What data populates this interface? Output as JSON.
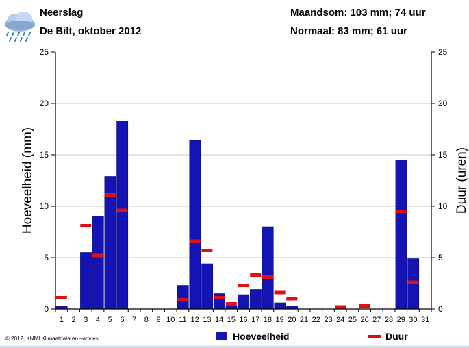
{
  "header": {
    "title_line1": "Neerslag",
    "title_line2": "De Bilt, oktober 2012",
    "summary_line1": "Maandsom: 103 mm; 74 uur",
    "summary_line2": "Normaal: 83 mm; 61 uur"
  },
  "icon": "rain-cloud-icon",
  "footer": {
    "credit": "© 2012, KNMI Klimaatdata en –advies"
  },
  "colors": {
    "bar": "#1414b4",
    "duration": "#dd1111",
    "grid": "#c8c8c8"
  },
  "chart_data": {
    "type": "bar",
    "x_label": "",
    "ylabel_left": "Hoeveelheid (mm)",
    "ylabel_right": "Duur (uren)",
    "ylim": [
      0,
      25
    ],
    "yticks": [
      0,
      5,
      10,
      15,
      20,
      25
    ],
    "grid": true,
    "categories": [
      "1",
      "2",
      "3",
      "4",
      "5",
      "6",
      "7",
      "8",
      "9",
      "10",
      "11",
      "12",
      "13",
      "14",
      "15",
      "16",
      "17",
      "18",
      "19",
      "20",
      "21",
      "22",
      "23",
      "24",
      "25",
      "26",
      "27",
      "28",
      "29",
      "30",
      "31"
    ],
    "series": [
      {
        "name": "Hoeveelheid",
        "kind": "bar",
        "axis": "left",
        "values": [
          0.3,
          0,
          5.5,
          9.0,
          12.9,
          18.3,
          0,
          0,
          0,
          0,
          2.3,
          16.4,
          4.4,
          1.5,
          0.3,
          1.4,
          1.9,
          8.0,
          0.6,
          0.3,
          0,
          0,
          0,
          0,
          0,
          0,
          0,
          0,
          14.5,
          4.9,
          0
        ]
      },
      {
        "name": "Duur",
        "kind": "marker",
        "axis": "right",
        "values": [
          1.1,
          null,
          8.1,
          5.2,
          11.1,
          9.6,
          null,
          null,
          null,
          null,
          0.9,
          6.6,
          5.7,
          1.1,
          0.5,
          2.3,
          3.3,
          3.1,
          1.6,
          1.0,
          null,
          null,
          null,
          0.2,
          null,
          0.3,
          null,
          null,
          9.5,
          2.6,
          null
        ]
      }
    ],
    "legend": [
      "Hoeveelheid",
      "Duur"
    ],
    "legend_position": "bottom"
  }
}
